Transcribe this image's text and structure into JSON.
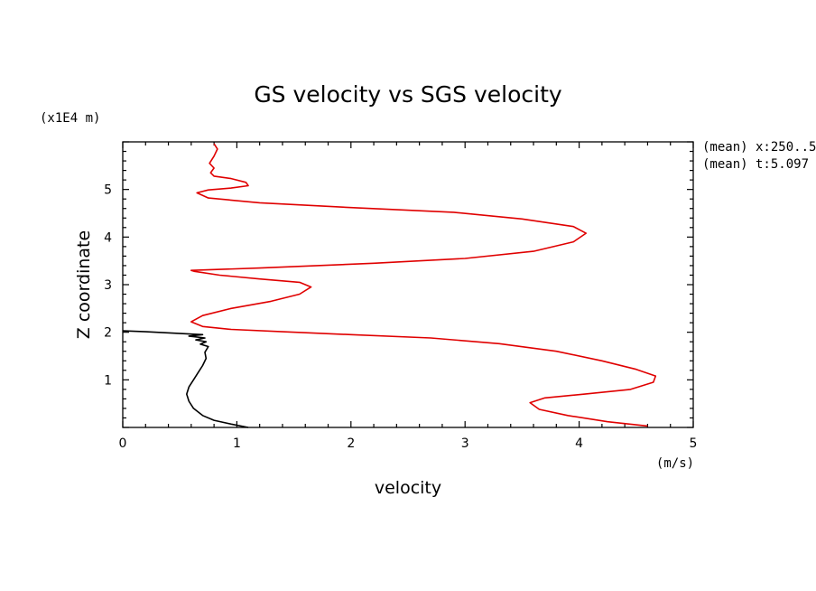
{
  "chart_data": {
    "type": "line",
    "title": "GS velocity vs SGS velocity",
    "xlabel": "velocity",
    "ylabel": "Z coordinate",
    "x_unit": "(m/s)",
    "y_unit": "(x1E4 m)",
    "xlim": [
      0,
      5
    ],
    "ylim": [
      0,
      6
    ],
    "x_ticks": [
      "0",
      "1",
      "2",
      "3",
      "4",
      "5"
    ],
    "y_ticks": [
      "1",
      "2",
      "3",
      "4",
      "5"
    ],
    "annotations": [
      "(mean) x:250..5",
      "(mean) t:5.097"
    ],
    "grid": false,
    "series": [
      {
        "color": "#e00000",
        "points": [
          [
            4.6,
            0.03
          ],
          [
            4.25,
            0.12
          ],
          [
            3.9,
            0.25
          ],
          [
            3.65,
            0.38
          ],
          [
            3.57,
            0.52
          ],
          [
            3.7,
            0.62
          ],
          [
            4.05,
            0.7
          ],
          [
            4.45,
            0.8
          ],
          [
            4.65,
            0.95
          ],
          [
            4.67,
            1.08
          ],
          [
            4.5,
            1.22
          ],
          [
            4.2,
            1.4
          ],
          [
            3.8,
            1.6
          ],
          [
            3.3,
            1.76
          ],
          [
            2.7,
            1.88
          ],
          [
            2.0,
            1.95
          ],
          [
            1.4,
            2.01
          ],
          [
            0.95,
            2.06
          ],
          [
            0.7,
            2.12
          ],
          [
            0.6,
            2.22
          ],
          [
            0.7,
            2.35
          ],
          [
            0.95,
            2.5
          ],
          [
            1.3,
            2.65
          ],
          [
            1.55,
            2.8
          ],
          [
            1.65,
            2.95
          ],
          [
            1.55,
            3.05
          ],
          [
            1.2,
            3.12
          ],
          [
            0.85,
            3.2
          ],
          [
            0.63,
            3.28
          ],
          [
            0.6,
            3.3
          ],
          [
            1.2,
            3.35
          ],
          [
            2.2,
            3.45
          ],
          [
            3.0,
            3.55
          ],
          [
            3.6,
            3.7
          ],
          [
            3.95,
            3.9
          ],
          [
            4.06,
            4.08
          ],
          [
            3.95,
            4.22
          ],
          [
            3.5,
            4.38
          ],
          [
            2.9,
            4.52
          ],
          [
            2.0,
            4.62
          ],
          [
            1.2,
            4.72
          ],
          [
            0.75,
            4.82
          ],
          [
            0.65,
            4.93
          ],
          [
            0.75,
            4.99
          ],
          [
            0.95,
            5.03
          ],
          [
            1.1,
            5.08
          ],
          [
            1.08,
            5.15
          ],
          [
            0.95,
            5.23
          ],
          [
            0.8,
            5.28
          ],
          [
            0.77,
            5.35
          ],
          [
            0.8,
            5.45
          ],
          [
            0.76,
            5.55
          ],
          [
            0.8,
            5.7
          ],
          [
            0.83,
            5.85
          ],
          [
            0.8,
            5.96
          ]
        ]
      },
      {
        "color": "#000000",
        "points": [
          [
            1.1,
            0.0
          ],
          [
            0.95,
            0.07
          ],
          [
            0.8,
            0.15
          ],
          [
            0.7,
            0.25
          ],
          [
            0.62,
            0.4
          ],
          [
            0.58,
            0.55
          ],
          [
            0.56,
            0.7
          ],
          [
            0.58,
            0.85
          ],
          [
            0.62,
            1.0
          ],
          [
            0.66,
            1.15
          ],
          [
            0.7,
            1.3
          ],
          [
            0.73,
            1.45
          ],
          [
            0.72,
            1.58
          ],
          [
            0.75,
            1.7
          ],
          [
            0.68,
            1.75
          ],
          [
            0.73,
            1.8
          ],
          [
            0.64,
            1.84
          ],
          [
            0.72,
            1.88
          ],
          [
            0.58,
            1.92
          ],
          [
            0.7,
            1.95
          ],
          [
            0.45,
            1.98
          ],
          [
            0.2,
            2.01
          ],
          [
            0.0,
            2.03
          ]
        ]
      }
    ]
  }
}
